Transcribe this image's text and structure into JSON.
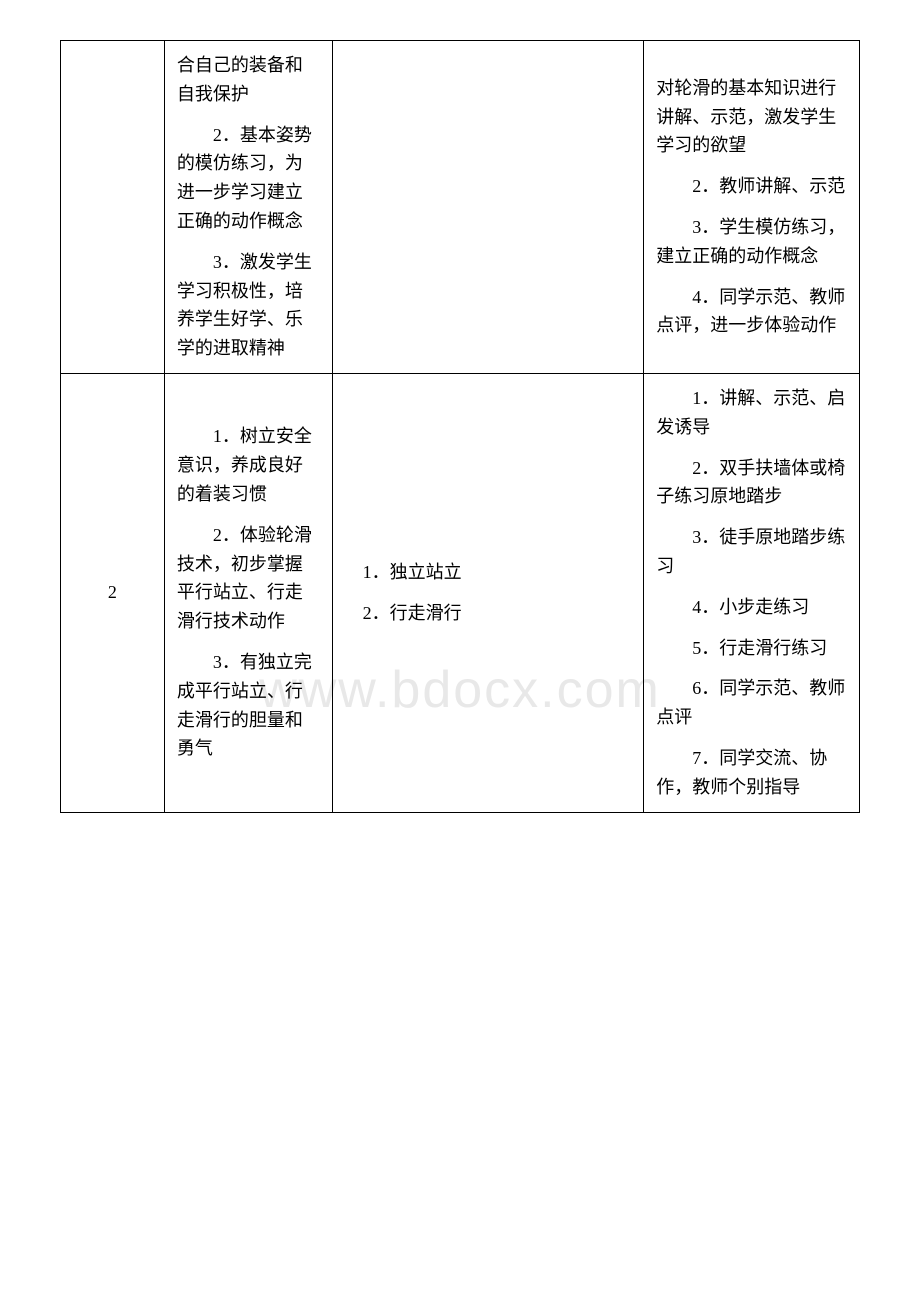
{
  "watermark": "www.bdocx.com",
  "table": {
    "rows": [
      {
        "col1": "",
        "col2": [
          "合自己的装备和自我保护",
          "2．基本姿势的模仿练习，为进一步学习建立正确的动作概念",
          "3．激发学生学习积极性，培养学生好学、乐学的进取精神"
        ],
        "col3": [],
        "col4": [
          "对轮滑的基本知识进行讲解、示范，激发学生学习的欲望",
          "2．教师讲解、示范",
          "3．学生模仿练习，建立正确的动作概念",
          "4．同学示范、教师点评，进一步体验动作"
        ]
      },
      {
        "col1": "2",
        "col2": [
          "1．树立安全意识，养成良好的着装习惯",
          "2．体验轮滑技术，初步掌握平行站立、行走滑行技术动作",
          "3．有独立完成平行站立、行走滑行的胆量和勇气"
        ],
        "col3": [
          "1．独立站立",
          "2．行走滑行"
        ],
        "col4": [
          "1．讲解、示范、启发诱导",
          "2．双手扶墙体或椅子练习原地踏步",
          "3．徒手原地踏步练习",
          "4．小步走练习",
          "5．行走滑行练习",
          "6．同学示范、教师点评",
          "7．同学交流、协作，教师个别指导"
        ]
      }
    ]
  }
}
